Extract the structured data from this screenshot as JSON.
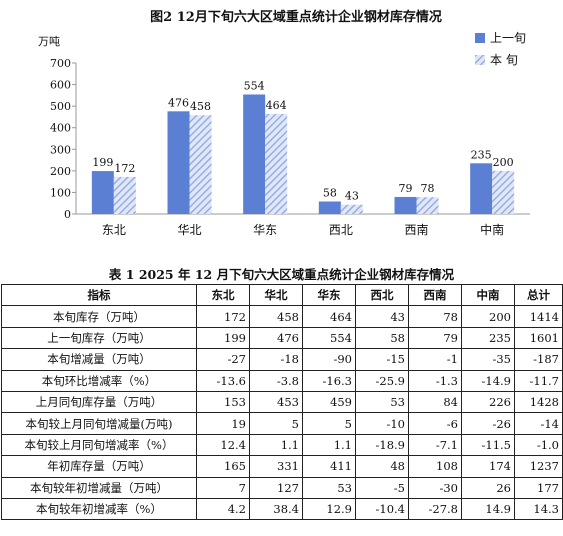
{
  "chart_data": {
    "type": "bar",
    "title": "图2   12月下旬六大区域重点统计企业钢材库存情况",
    "ylabel": "万吨",
    "ylim": [
      0,
      700
    ],
    "yticks": [
      0,
      100,
      200,
      300,
      400,
      500,
      600,
      700
    ],
    "categories": [
      "东北",
      "华北",
      "华东",
      "西北",
      "西南",
      "中南"
    ],
    "series": [
      {
        "name": "上一旬",
        "values": [
          199,
          476,
          554,
          58,
          79,
          235
        ],
        "color": "#5b7fd3"
      },
      {
        "name": "本  旬",
        "values": [
          172,
          458,
          464,
          43,
          78,
          200
        ],
        "color": "#a9bde8"
      }
    ],
    "legend_position": "top-right",
    "grid": false
  },
  "table": {
    "title": "表 1   2025 年 12 月下旬六大区域重点统计企业钢材库存情况",
    "headers": [
      "指标",
      "东北",
      "华北",
      "华东",
      "西北",
      "西南",
      "中南",
      "总计"
    ],
    "rows": [
      [
        "本旬库存（万吨）",
        "172",
        "458",
        "464",
        "43",
        "78",
        "200",
        "1414"
      ],
      [
        "上一旬库存（万吨）",
        "199",
        "476",
        "554",
        "58",
        "79",
        "235",
        "1601"
      ],
      [
        "本旬增减量（万吨）",
        "-27",
        "-18",
        "-90",
        "-15",
        "-1",
        "-35",
        "-187"
      ],
      [
        "本旬环比增减率（%）",
        "-13.6",
        "-3.8",
        "-16.3",
        "-25.9",
        "-1.3",
        "-14.9",
        "-11.7"
      ],
      [
        "上月同旬库存量（万吨）",
        "153",
        "453",
        "459",
        "53",
        "84",
        "226",
        "1428"
      ],
      [
        "本旬较上月同旬增减量(万吨)",
        "19",
        "5",
        "5",
        "-10",
        "-6",
        "-26",
        "-14"
      ],
      [
        "本旬较上月同旬增减率（%）",
        "12.4",
        "1.1",
        "1.1",
        "-18.9",
        "-7.1",
        "-11.5",
        "-1.0"
      ],
      [
        "年初库存量（万吨）",
        "165",
        "331",
        "411",
        "48",
        "108",
        "174",
        "1237"
      ],
      [
        "本旬较年初增减量（万吨）",
        "7",
        "127",
        "53",
        "-5",
        "-30",
        "26",
        "177"
      ],
      [
        "本旬较年初增减率（%）",
        "4.2",
        "38.4",
        "12.9",
        "-10.4",
        "-27.8",
        "14.9",
        "14.3"
      ]
    ]
  }
}
